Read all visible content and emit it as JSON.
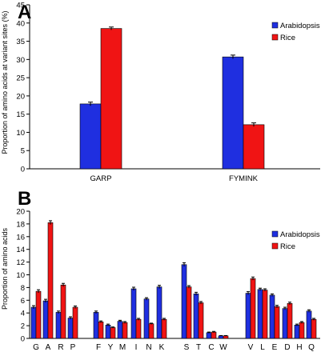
{
  "colors": {
    "arabidopsis": "#1f2fe0",
    "rice": "#f01414",
    "axis": "#000000"
  },
  "chart_data": [
    {
      "panel": "A",
      "type": "bar",
      "ylabel": "Proportion of amino acids at variant sites (%)",
      "xlabel": "",
      "ylim": [
        0,
        45
      ],
      "yticks": [
        "0",
        "5",
        "10",
        "15",
        "20",
        "25",
        "30",
        "35",
        "40",
        "45"
      ],
      "ytick_values": [
        0,
        5,
        10,
        15,
        20,
        25,
        30,
        35,
        40,
        45
      ],
      "categories": [
        "GARP",
        "FYMINK"
      ],
      "series": [
        {
          "name": "Arabidopsis",
          "color": "#1f2fe0",
          "values": [
            17.8,
            30.7
          ],
          "errors": [
            0.5,
            0.5
          ]
        },
        {
          "name": "Rice",
          "color": "#f01414",
          "values": [
            38.5,
            12.1
          ],
          "errors": [
            0.4,
            0.5
          ]
        }
      ],
      "legend_position": "top-right",
      "grid": false
    },
    {
      "panel": "B",
      "type": "bar",
      "ylabel": "Proportion of amino acids",
      "xlabel": "",
      "ylim": [
        0,
        20
      ],
      "yticks": [
        "0",
        "2",
        "4",
        "6",
        "8",
        "10",
        "12",
        "14",
        "16",
        "18",
        "20"
      ],
      "ytick_values": [
        0,
        2,
        4,
        6,
        8,
        10,
        12,
        14,
        16,
        18,
        20
      ],
      "categories": [
        "G",
        "A",
        "R",
        "P",
        "F",
        "Y",
        "M",
        "I",
        "N",
        "K",
        "S",
        "T",
        "C",
        "W",
        "V",
        "L",
        "E",
        "D",
        "H",
        "Q"
      ],
      "groups": [
        [
          "G",
          "A",
          "R",
          "P"
        ],
        [
          "F",
          "Y",
          "M",
          "I",
          "N",
          "K"
        ],
        [
          "S",
          "T",
          "C",
          "W"
        ],
        [
          "V",
          "L",
          "E",
          "D",
          "H",
          "Q"
        ]
      ],
      "series": [
        {
          "name": "Arabidopsis",
          "color": "#1f2fe0",
          "values": [
            4.9,
            5.9,
            4.1,
            3.2,
            4.1,
            2.1,
            2.7,
            7.8,
            6.2,
            8.1,
            11.6,
            7.0,
            0.9,
            0.4,
            7.1,
            7.7,
            6.8,
            4.7,
            2.1,
            4.3
          ],
          "errors": [
            0.25,
            0.25,
            0.2,
            0.2,
            0.2,
            0.15,
            0.15,
            0.25,
            0.2,
            0.25,
            0.3,
            0.25,
            0.1,
            0.05,
            0.25,
            0.2,
            0.2,
            0.2,
            0.15,
            0.2
          ]
        },
        {
          "name": "Rice",
          "color": "#f01414",
          "values": [
            7.4,
            18.2,
            8.4,
            4.9,
            2.6,
            1.7,
            2.5,
            3.0,
            2.3,
            3.0,
            8.1,
            5.6,
            1.0,
            0.4,
            9.4,
            7.6,
            5.0,
            5.5,
            2.5,
            3.0
          ],
          "errors": [
            0.25,
            0.3,
            0.25,
            0.2,
            0.15,
            0.1,
            0.15,
            0.15,
            0.1,
            0.15,
            0.2,
            0.2,
            0.1,
            0.05,
            0.25,
            0.2,
            0.2,
            0.2,
            0.15,
            0.15
          ]
        }
      ],
      "legend_position": "right",
      "grid": false
    }
  ]
}
